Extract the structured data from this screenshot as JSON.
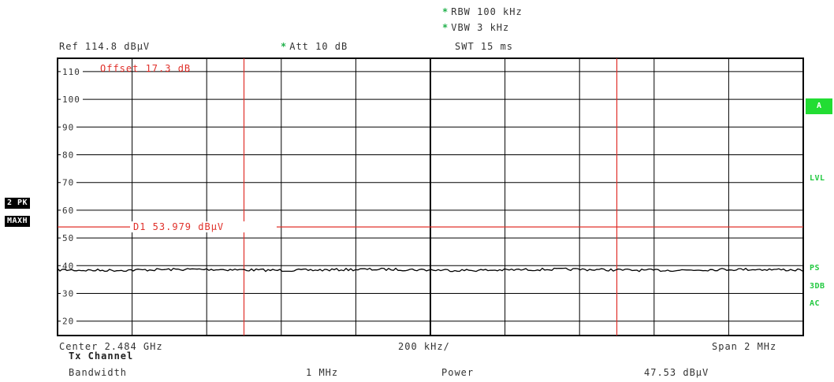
{
  "header": {
    "rbw": "RBW 100 kHz",
    "vbw": "VBW 3 kHz",
    "swt": "SWT 15 ms",
    "ref": "Ref 114.8 dBµV",
    "att": "Att 10 dB"
  },
  "plot": {
    "offset_label": "Offset 17.3 dB",
    "y_ticks": [
      "110",
      "100",
      "90",
      "80",
      "70",
      "60",
      "50",
      "40",
      "30",
      "20"
    ],
    "delta_marker_label": "D1 53.979 dBµV",
    "delta_marker_level_dbuv": 53.979,
    "trace_level_dbuv": 38.5,
    "colors": {
      "grid": "#000000",
      "marker_lines": "#e0302a",
      "trace": "#000000"
    }
  },
  "left_badges": {
    "trace": "2 PK",
    "mode": "MAXH"
  },
  "right_status": {
    "a": "A",
    "lvl": "LVL",
    "ps": "PS",
    "db3": "3DB",
    "ac": "AC",
    "green": "#22c940"
  },
  "axis": {
    "center": "Center 2.484 GHz",
    "div": "200 kHz/",
    "span": "Span 2 MHz"
  },
  "measurement": {
    "title": "Tx Channel",
    "bandwidth_label": "Bandwidth",
    "bandwidth_value": "1 MHz",
    "power_label": "Power",
    "power_value": "47.53 dBµV"
  }
}
